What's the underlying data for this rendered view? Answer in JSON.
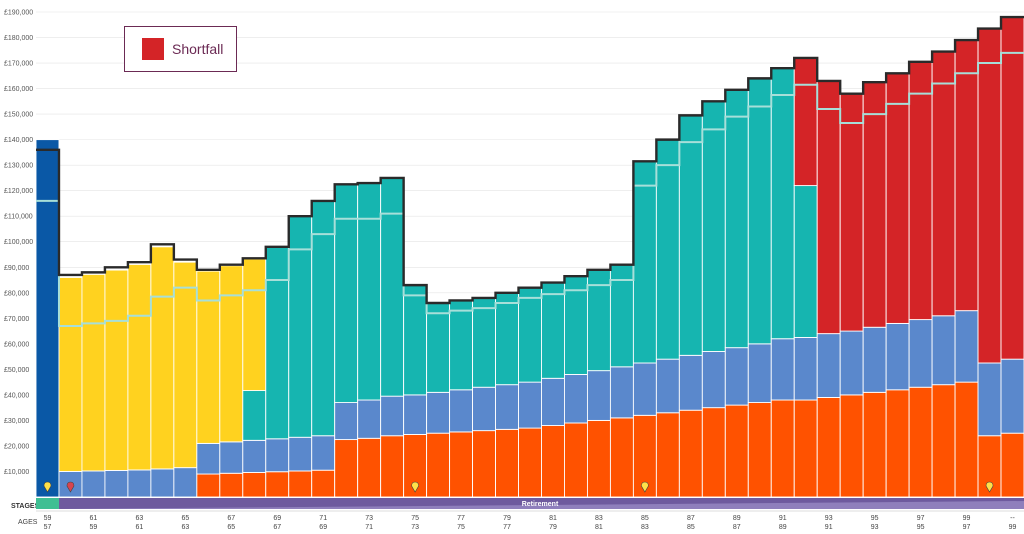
{
  "chart_data": {
    "type": "bar",
    "stacked": true,
    "y_ticks": [
      "£10,000",
      "£20,000",
      "£30,000",
      "£40,000",
      "£50,000",
      "£60,000",
      "£70,000",
      "£80,000",
      "£90,000",
      "£100,000",
      "£110,000",
      "£120,000",
      "£130,000",
      "£140,000",
      "£150,000",
      "£160,000",
      "£170,000",
      "£180,000",
      "£190,000"
    ],
    "ylim": [
      0,
      190000
    ],
    "grid": true,
    "legend": {
      "position": "top-left",
      "entries": [
        {
          "name": "Shortfall",
          "color": "#d42427"
        }
      ]
    },
    "colors": {
      "initial": "#0a58a6",
      "orange": "#ff5200",
      "blue": "#5a88cc",
      "yellow": "#ffd21f",
      "teal": "#16b5b0",
      "shortfall": "#d42427",
      "outline": "#2a2a2a",
      "line": "#a7dfd9",
      "stage_bar": "#6e5a9e"
    },
    "bars": [
      {
        "age1": "59",
        "age2": "57",
        "initial": 140000,
        "orange": 0,
        "blue": 0,
        "top": 0,
        "top_type": "",
        "shortfall": 0,
        "outline": 136000,
        "line": 116000
      },
      {
        "age1": "",
        "age2": "",
        "initial": 0,
        "orange": 0,
        "blue": 10000,
        "top": 76000,
        "top_type": "yellow",
        "shortfall": 0,
        "outline": 87000,
        "line": 67000
      },
      {
        "age1": "61",
        "age2": "59",
        "initial": 0,
        "orange": 0,
        "blue": 10200,
        "top": 77000,
        "top_type": "yellow",
        "shortfall": 0,
        "outline": 88000,
        "line": 68000
      },
      {
        "age1": "",
        "age2": "",
        "initial": 0,
        "orange": 0,
        "blue": 10400,
        "top": 78500,
        "top_type": "yellow",
        "shortfall": 0,
        "outline": 90000,
        "line": 69000
      },
      {
        "age1": "63",
        "age2": "61",
        "initial": 0,
        "orange": 0,
        "blue": 10600,
        "top": 80500,
        "top_type": "yellow",
        "shortfall": 0,
        "outline": 92000,
        "line": 71000
      },
      {
        "age1": "",
        "age2": "",
        "initial": 0,
        "orange": 0,
        "blue": 11000,
        "top": 87000,
        "top_type": "yellow",
        "shortfall": 0,
        "outline": 99000,
        "line": 78500
      },
      {
        "age1": "65",
        "age2": "63",
        "initial": 0,
        "orange": 0,
        "blue": 11500,
        "top": 80500,
        "top_type": "yellow",
        "shortfall": 0,
        "outline": 93000,
        "line": 82000
      },
      {
        "age1": "",
        "age2": "",
        "initial": 0,
        "orange": 9000,
        "blue": 12000,
        "top": 67500,
        "top_type": "yellow",
        "shortfall": 0,
        "outline": 89000,
        "line": 77000
      },
      {
        "age1": "67",
        "age2": "65",
        "initial": 0,
        "orange": 9300,
        "blue": 12300,
        "top": 69000,
        "top_type": "yellow",
        "shortfall": 0,
        "outline": 91000,
        "line": 79000
      },
      {
        "age1": "",
        "age2": "",
        "initial": 0,
        "orange": 9600,
        "blue": 12600,
        "top": 19500,
        "top_type": "teal",
        "shortfall": 0,
        "outline": 93500,
        "line": 81000,
        "yellow_extra": 51500
      },
      {
        "age1": "69",
        "age2": "67",
        "initial": 0,
        "orange": 9900,
        "blue": 12900,
        "top": 75000,
        "top_type": "teal",
        "shortfall": 0,
        "outline": 98000,
        "line": 85000
      },
      {
        "age1": "",
        "age2": "",
        "initial": 0,
        "orange": 10200,
        "blue": 13200,
        "top": 87000,
        "top_type": "teal",
        "shortfall": 0,
        "outline": 110000,
        "line": 97000
      },
      {
        "age1": "71",
        "age2": "69",
        "initial": 0,
        "orange": 10500,
        "blue": 13500,
        "top": 92000,
        "top_type": "teal",
        "shortfall": 0,
        "outline": 116000,
        "line": 103000
      },
      {
        "age1": "",
        "age2": "",
        "initial": 0,
        "orange": 22500,
        "blue": 14500,
        "top": 85500,
        "top_type": "teal",
        "shortfall": 0,
        "outline": 122500,
        "line": 109000
      },
      {
        "age1": "73",
        "age2": "71",
        "initial": 0,
        "orange": 23000,
        "blue": 15000,
        "top": 85000,
        "top_type": "teal",
        "shortfall": 0,
        "outline": 123000,
        "line": 109000
      },
      {
        "age1": "",
        "age2": "",
        "initial": 0,
        "orange": 24000,
        "blue": 15500,
        "top": 85500,
        "top_type": "teal",
        "shortfall": 0,
        "outline": 125000,
        "line": 111000
      },
      {
        "age1": "75",
        "age2": "73",
        "initial": 0,
        "orange": 24500,
        "blue": 15500,
        "top": 43000,
        "top_type": "teal",
        "shortfall": 0,
        "outline": 83000,
        "line": 79000
      },
      {
        "age1": "",
        "age2": "",
        "initial": 0,
        "orange": 25000,
        "blue": 16000,
        "top": 35000,
        "top_type": "teal",
        "shortfall": 0,
        "outline": 76000,
        "line": 72000
      },
      {
        "age1": "77",
        "age2": "75",
        "initial": 0,
        "orange": 25500,
        "blue": 16500,
        "top": 35000,
        "top_type": "teal",
        "shortfall": 0,
        "outline": 77000,
        "line": 73000
      },
      {
        "age1": "",
        "age2": "",
        "initial": 0,
        "orange": 26000,
        "blue": 17000,
        "top": 35000,
        "top_type": "teal",
        "shortfall": 0,
        "outline": 78000,
        "line": 74000
      },
      {
        "age1": "79",
        "age2": "77",
        "initial": 0,
        "orange": 26500,
        "blue": 17500,
        "top": 36000,
        "top_type": "teal",
        "shortfall": 0,
        "outline": 80000,
        "line": 76000
      },
      {
        "age1": "",
        "age2": "",
        "initial": 0,
        "orange": 27000,
        "blue": 18000,
        "top": 37000,
        "top_type": "teal",
        "shortfall": 0,
        "outline": 82000,
        "line": 78000
      },
      {
        "age1": "81",
        "age2": "79",
        "initial": 0,
        "orange": 28000,
        "blue": 18500,
        "top": 37500,
        "top_type": "teal",
        "shortfall": 0,
        "outline": 84000,
        "line": 79500
      },
      {
        "age1": "",
        "age2": "",
        "initial": 0,
        "orange": 29000,
        "blue": 19000,
        "top": 38500,
        "top_type": "teal",
        "shortfall": 0,
        "outline": 86500,
        "line": 81000
      },
      {
        "age1": "83",
        "age2": "81",
        "initial": 0,
        "orange": 30000,
        "blue": 19500,
        "top": 39500,
        "top_type": "teal",
        "shortfall": 0,
        "outline": 89000,
        "line": 83000
      },
      {
        "age1": "",
        "age2": "",
        "initial": 0,
        "orange": 31000,
        "blue": 20000,
        "top": 40000,
        "top_type": "teal",
        "shortfall": 0,
        "outline": 91000,
        "line": 85000
      },
      {
        "age1": "85",
        "age2": "83",
        "initial": 0,
        "orange": 32000,
        "blue": 20500,
        "top": 79000,
        "top_type": "teal",
        "shortfall": 0,
        "outline": 131500,
        "line": 122000
      },
      {
        "age1": "",
        "age2": "",
        "initial": 0,
        "orange": 33000,
        "blue": 21000,
        "top": 86000,
        "top_type": "teal",
        "shortfall": 0,
        "outline": 140000,
        "line": 130000
      },
      {
        "age1": "87",
        "age2": "85",
        "initial": 0,
        "orange": 34000,
        "blue": 21500,
        "top": 94000,
        "top_type": "teal",
        "shortfall": 0,
        "outline": 149500,
        "line": 139000
      },
      {
        "age1": "",
        "age2": "",
        "initial": 0,
        "orange": 35000,
        "blue": 22000,
        "top": 98000,
        "top_type": "teal",
        "shortfall": 0,
        "outline": 155000,
        "line": 144000
      },
      {
        "age1": "89",
        "age2": "87",
        "initial": 0,
        "orange": 36000,
        "blue": 22500,
        "top": 101000,
        "top_type": "teal",
        "shortfall": 0,
        "outline": 159500,
        "line": 149000
      },
      {
        "age1": "",
        "age2": "",
        "initial": 0,
        "orange": 37000,
        "blue": 23000,
        "top": 104000,
        "top_type": "teal",
        "shortfall": 0,
        "outline": 164000,
        "line": 153000
      },
      {
        "age1": "91",
        "age2": "89",
        "initial": 0,
        "orange": 38000,
        "blue": 24000,
        "top": 106000,
        "top_type": "teal",
        "shortfall": 0,
        "outline": 168000,
        "line": 157500
      },
      {
        "age1": "",
        "age2": "",
        "initial": 0,
        "orange": 38000,
        "blue": 24500,
        "top": 59500,
        "top_type": "teal",
        "shortfall": 50000,
        "outline": 172000,
        "line": 161500
      },
      {
        "age1": "93",
        "age2": "91",
        "initial": 0,
        "orange": 39000,
        "blue": 25000,
        "top": 0,
        "top_type": "",
        "shortfall": 99000,
        "outline": 163000,
        "line": 152000
      },
      {
        "age1": "",
        "age2": "",
        "initial": 0,
        "orange": 40000,
        "blue": 25000,
        "top": 0,
        "top_type": "",
        "shortfall": 93000,
        "outline": 158000,
        "line": 146500
      },
      {
        "age1": "95",
        "age2": "93",
        "initial": 0,
        "orange": 41000,
        "blue": 25500,
        "top": 0,
        "top_type": "",
        "shortfall": 96000,
        "outline": 162500,
        "line": 150000
      },
      {
        "age1": "",
        "age2": "",
        "initial": 0,
        "orange": 42000,
        "blue": 26000,
        "top": 0,
        "top_type": "",
        "shortfall": 98000,
        "outline": 166000,
        "line": 154000
      },
      {
        "age1": "97",
        "age2": "95",
        "initial": 0,
        "orange": 43000,
        "blue": 26500,
        "top": 0,
        "top_type": "",
        "shortfall": 101000,
        "outline": 170500,
        "line": 158000
      },
      {
        "age1": "",
        "age2": "",
        "initial": 0,
        "orange": 44000,
        "blue": 27000,
        "top": 0,
        "top_type": "",
        "shortfall": 103500,
        "outline": 174500,
        "line": 162000
      },
      {
        "age1": "99",
        "age2": "97",
        "initial": 0,
        "orange": 45000,
        "blue": 28000,
        "top": 0,
        "top_type": "",
        "shortfall": 106000,
        "outline": 179000,
        "line": 166000
      },
      {
        "age1": "",
        "age2": "",
        "initial": 0,
        "orange": 24000,
        "blue": 28500,
        "top": 0,
        "top_type": "",
        "shortfall": 131000,
        "outline": 183500,
        "line": 170000
      },
      {
        "age1": "--",
        "age2": "99",
        "initial": 0,
        "orange": 25000,
        "blue": 29000,
        "top": 0,
        "top_type": "",
        "shortfall": 134000,
        "outline": 188000,
        "line": 174000
      }
    ],
    "markers": [
      {
        "bar": 0,
        "color": "#ffe14a"
      },
      {
        "bar": 1,
        "color": "#d8444f"
      },
      {
        "bar": 16,
        "color": "#ffe14a"
      },
      {
        "bar": 26,
        "color": "#ffe14a"
      },
      {
        "bar": 41,
        "color": "#ffe14a"
      }
    ],
    "stages_label": "STAGES",
    "ages_label": "AGES",
    "stage_name": "Retirement"
  }
}
